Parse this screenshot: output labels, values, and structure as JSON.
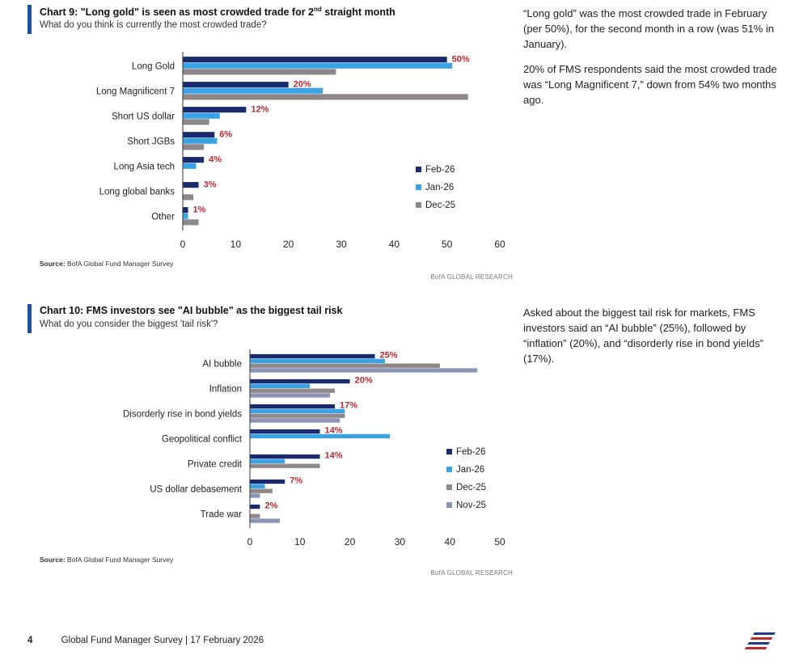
{
  "colors": {
    "feb26": "#1a2a6c",
    "jan26": "#3aa3e3",
    "dec25": "#8f8787",
    "nov25": "#8b93b6",
    "label_red": "#c0282e",
    "accent": "#1f4fa0"
  },
  "chart9": {
    "title_main": "Chart 9: \"Long gold\" is seen as most crowded trade for 2",
    "title_sup": "nd",
    "title_tail": " straight month",
    "subtitle": "What do you think is currently the most crowded trade?",
    "source_label": "Source:",
    "source_text": " BofA Global Fund Manager Survey",
    "brand": "BofA GLOBAL RESEARCH"
  },
  "chart10": {
    "title": "Chart 10: FMS investors see \"AI bubble\" as the biggest tail risk",
    "subtitle": "What do you consider the biggest 'tail risk'?",
    "source_label": "Source:",
    "source_text": " BofA Global Fund Manager Survey",
    "brand": "BofA GLOBAL RESEARCH"
  },
  "commentary": {
    "chart9_p1": "“Long gold” was the most crowded trade in February (per 50%), for the second month in a row (was 51% in January).",
    "chart9_p2": "20% of FMS respondents said the most crowded trade was “Long Magnificent 7,” down from 54% two months ago.",
    "chart10_p1": "Asked about the biggest tail risk for markets, FMS investors said an “AI bubble” (25%), followed by “inflation” (20%), and “disorderly rise in bond yields” (17%)."
  },
  "footer": {
    "page": "4",
    "text": "Global Fund Manager Survey | 17 February 2026"
  },
  "chart_data": [
    {
      "type": "bar",
      "orientation": "horizontal",
      "title": "Chart 9: \"Long gold\" is seen as most crowded trade for 2nd straight month",
      "subtitle": "What do you think is currently the most crowded trade?",
      "categories": [
        "Long Gold",
        "Long Magnificent 7",
        "Short US dollar",
        "Short JGBs",
        "Long Asia tech",
        "Long global banks",
        "Other"
      ],
      "series": [
        {
          "name": "Feb-26",
          "color": "#1a2a6c",
          "values": [
            50,
            20,
            12,
            6,
            4,
            3,
            1
          ]
        },
        {
          "name": "Jan-26",
          "color": "#3aa3e3",
          "values": [
            51,
            26.5,
            7,
            6.5,
            2.5,
            0,
            1
          ]
        },
        {
          "name": "Dec-25",
          "color": "#8f8787",
          "values": [
            29,
            54,
            5,
            4,
            0,
            2,
            3
          ]
        }
      ],
      "data_labels": [
        "50%",
        "20%",
        "12%",
        "6%",
        "4%",
        "3%",
        "1%"
      ],
      "xlim": [
        0,
        60
      ],
      "xticks": [
        "0",
        "10",
        "20",
        "30",
        "40",
        "50",
        "60"
      ],
      "legend": "right-middle",
      "grid": false
    },
    {
      "type": "bar",
      "orientation": "horizontal",
      "title": "Chart 10: FMS investors see \"AI bubble\" as the biggest tail risk",
      "subtitle": "What do you consider the biggest 'tail risk'?",
      "categories": [
        "AI bubble",
        "Inflation",
        "Disorderly rise in bond yields",
        "Geopolitical conflict",
        "Private credit",
        "US dollar debasement",
        "Trade war"
      ],
      "series": [
        {
          "name": "Feb-26",
          "color": "#1a2a6c",
          "values": [
            25,
            20,
            17,
            14,
            14,
            7,
            2
          ]
        },
        {
          "name": "Jan-26",
          "color": "#3aa3e3",
          "values": [
            27,
            12,
            19,
            28,
            7,
            3,
            0
          ]
        },
        {
          "name": "Dec-25",
          "color": "#8f8787",
          "values": [
            38,
            17,
            19,
            0,
            14,
            4.5,
            2
          ]
        },
        {
          "name": "Nov-25",
          "color": "#8b93b6",
          "values": [
            45.5,
            16,
            18,
            0,
            0,
            2,
            6
          ]
        }
      ],
      "data_labels": [
        "25%",
        "20%",
        "17%",
        "14%",
        "14%",
        "7%",
        "2%"
      ],
      "xlim": [
        0,
        50
      ],
      "xticks": [
        "0",
        "10",
        "20",
        "30",
        "40",
        "50"
      ],
      "legend": "right-middle",
      "grid": false
    }
  ]
}
